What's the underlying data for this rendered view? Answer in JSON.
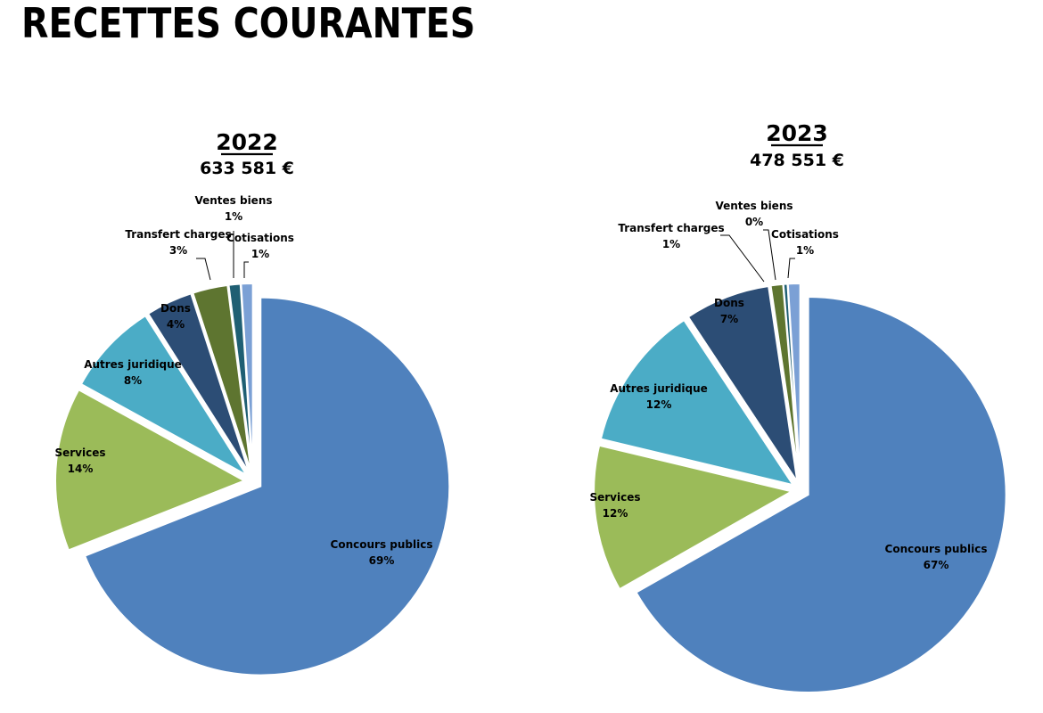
{
  "title": "RECETTES COURANTES",
  "chart_data": [
    {
      "type": "pie",
      "title": "2022",
      "subtitle": "633 581 €",
      "categories": [
        "Concours publics",
        "Services",
        "Autres juridique",
        "Dons",
        "Transfert charges",
        "Ventes biens",
        "Cotisations"
      ],
      "values": [
        69,
        14,
        8,
        4,
        3,
        1,
        1
      ],
      "labels": [
        "69%",
        "14%",
        "8%",
        "4%",
        "3%",
        "1%",
        "1%"
      ],
      "exploded": [
        true,
        true,
        true,
        true,
        true,
        true,
        true
      ]
    },
    {
      "type": "pie",
      "title": "2023",
      "subtitle": "478 551 €",
      "categories": [
        "Concours publics",
        "Services",
        "Autres juridique",
        "Dons",
        "Transfert charges",
        "Ventes biens",
        "Cotisations"
      ],
      "values": [
        67,
        12,
        12,
        7,
        1,
        0,
        1
      ],
      "labels": [
        "67%",
        "12%",
        "12%",
        "7%",
        "1%",
        "0%",
        "1%"
      ],
      "exploded": [
        true,
        true,
        true,
        true,
        true,
        true,
        true
      ]
    }
  ],
  "colors": {
    "Concours publics": "#4f81bd",
    "Services": "#9bbb59",
    "Autres juridique": "#4bacc6",
    "Dons": "#2c4d75",
    "Transfert charges": "#5e7530",
    "Ventes biens": "#1f5f73",
    "Cotisations": "#7ba0d5"
  }
}
